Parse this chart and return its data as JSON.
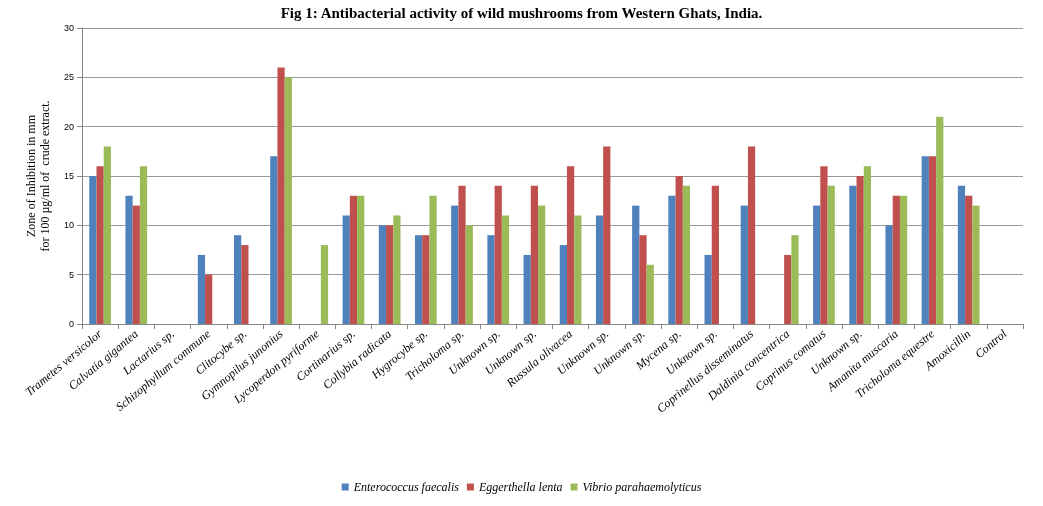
{
  "chart_data": {
    "type": "bar",
    "title": "Fig 1: Antibacterial activity of wild mushrooms from Western Ghats, India.",
    "ylabel": "Zone of Inhibition in mm\nfor 100 µg/ml of  crude extract.",
    "categories": [
      "Trametes versicolor",
      "Calvatia gigantea",
      "Lactarius sp.",
      "Schizophyllum commune",
      "Clitocybe sp.",
      "Gymnopilus junonius",
      "Lycoperdon pyriforme",
      "Cortinarius sp.",
      "Collybia radicata",
      "Hygrocybe sp.",
      "Tricholoma sp.",
      "Unknown sp.",
      "Unknown sp.",
      "Russula olivacea",
      "Unknown sp.",
      "Unknown sp.",
      "Mycena sp.",
      "Unknown sp.",
      "Coprinellus disseminatus",
      "Daldinia concentrica",
      "Coprinus comatus",
      "Unknown sp.",
      "Amanita muscaria",
      "Tricholoma equestre",
      "Amoxicillin",
      "Control"
    ],
    "series": [
      {
        "name": "Enterococcus faecalis",
        "color": "#4f81bd",
        "values": [
          15,
          13,
          0,
          7,
          9,
          17,
          0,
          11,
          10,
          9,
          12,
          9,
          7,
          8,
          11,
          12,
          13,
          7,
          12,
          0,
          12,
          14,
          10,
          17,
          14,
          0
        ]
      },
      {
        "name": "Eggerthella lenta",
        "color": "#c0504d",
        "values": [
          16,
          12,
          0,
          5,
          8,
          26,
          0,
          13,
          10,
          9,
          14,
          14,
          14,
          16,
          18,
          9,
          15,
          14,
          18,
          7,
          16,
          15,
          13,
          17,
          13,
          0
        ]
      },
      {
        "name": "Vibrio parahaemolyticus",
        "color": "#9bbb59",
        "values": [
          18,
          16,
          0,
          0,
          0,
          25,
          8,
          13,
          11,
          13,
          10,
          11,
          12,
          11,
          0,
          6,
          14,
          0,
          0,
          9,
          14,
          16,
          13,
          21,
          12,
          0
        ]
      }
    ],
    "ylim": [
      0,
      30
    ],
    "yticks": [
      0,
      5,
      10,
      15,
      20,
      25,
      30
    ],
    "grid": "y",
    "legend": "bottom"
  }
}
